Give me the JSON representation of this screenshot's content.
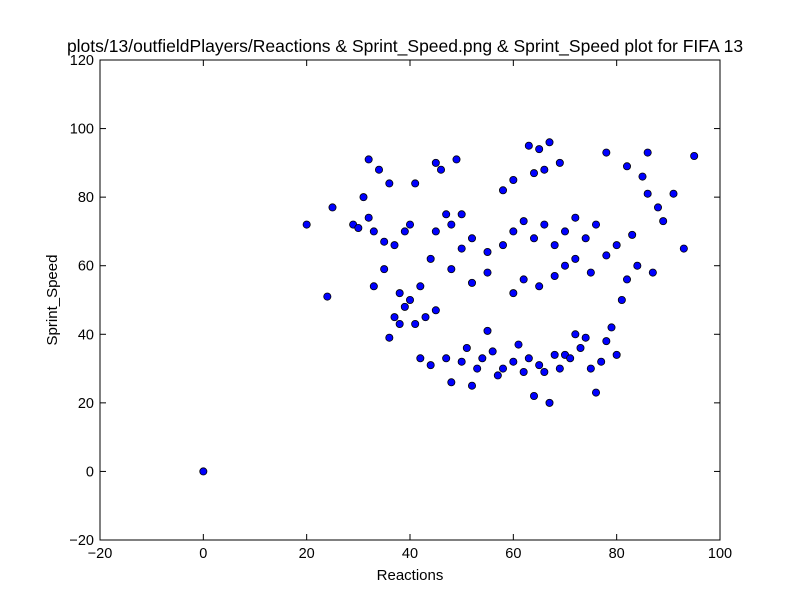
{
  "chart_data": {
    "type": "scatter",
    "title": "plots/13/outfieldPlayers/Reactions & Sprint_Speed.png & Sprint_Speed plot for FIFA 13",
    "xlabel": "Reactions",
    "ylabel": "Sprint_Speed",
    "xlim": [
      -20,
      100
    ],
    "ylim": [
      -20,
      120
    ],
    "x_ticks": [
      -20,
      0,
      20,
      40,
      60,
      80,
      100
    ],
    "y_ticks": [
      -20,
      0,
      20,
      40,
      60,
      80,
      100,
      120
    ],
    "grid": false,
    "legend": "none",
    "marker_color": "#0000ff",
    "marker_edge_color": "#000000",
    "series": [
      {
        "x": [
          0,
          20,
          24,
          25,
          29,
          30,
          31,
          32,
          32,
          33,
          33,
          34,
          35,
          35,
          36,
          36,
          37,
          37,
          38,
          38,
          39,
          39,
          40,
          40,
          41,
          41,
          42,
          42,
          43,
          44,
          44,
          45,
          45,
          46,
          47,
          47,
          48,
          48,
          49,
          50,
          50,
          51,
          52,
          53,
          54,
          55,
          56,
          57,
          58,
          60,
          61,
          62,
          63,
          64,
          65,
          66,
          67,
          68,
          69,
          70,
          71,
          72,
          73,
          74,
          75,
          76,
          77,
          78,
          79,
          80,
          81,
          82,
          83,
          84,
          85,
          86,
          87,
          88,
          89,
          91,
          93,
          95,
          45,
          48,
          50,
          52,
          55,
          58,
          60,
          62,
          64,
          66,
          68,
          70,
          72,
          74,
          76,
          63,
          65,
          67,
          78,
          82,
          86,
          52,
          55,
          60,
          62,
          65,
          68,
          70,
          72,
          75,
          78,
          80,
          58,
          60,
          64,
          66,
          69
        ],
        "y": [
          0,
          72,
          51,
          77,
          72,
          71,
          80,
          91,
          74,
          54,
          70,
          88,
          67,
          59,
          84,
          39,
          66,
          45,
          43,
          52,
          48,
          70,
          72,
          50,
          43,
          84,
          33,
          54,
          45,
          31,
          62,
          90,
          47,
          88,
          33,
          75,
          26,
          59,
          91,
          32,
          65,
          36,
          25,
          30,
          33,
          41,
          35,
          28,
          30,
          32,
          37,
          29,
          33,
          22,
          31,
          29,
          20,
          34,
          30,
          34,
          33,
          40,
          36,
          39,
          30,
          23,
          32,
          38,
          42,
          34,
          50,
          56,
          69,
          60,
          86,
          93,
          58,
          77,
          73,
          81,
          65,
          92,
          70,
          72,
          75,
          68,
          64,
          66,
          70,
          73,
          68,
          72,
          66,
          70,
          74,
          68,
          72,
          95,
          94,
          96,
          93,
          89,
          81,
          55,
          58,
          52,
          56,
          54,
          57,
          60,
          62,
          58,
          63,
          66,
          82,
          85,
          87,
          88,
          90
        ]
      }
    ]
  }
}
